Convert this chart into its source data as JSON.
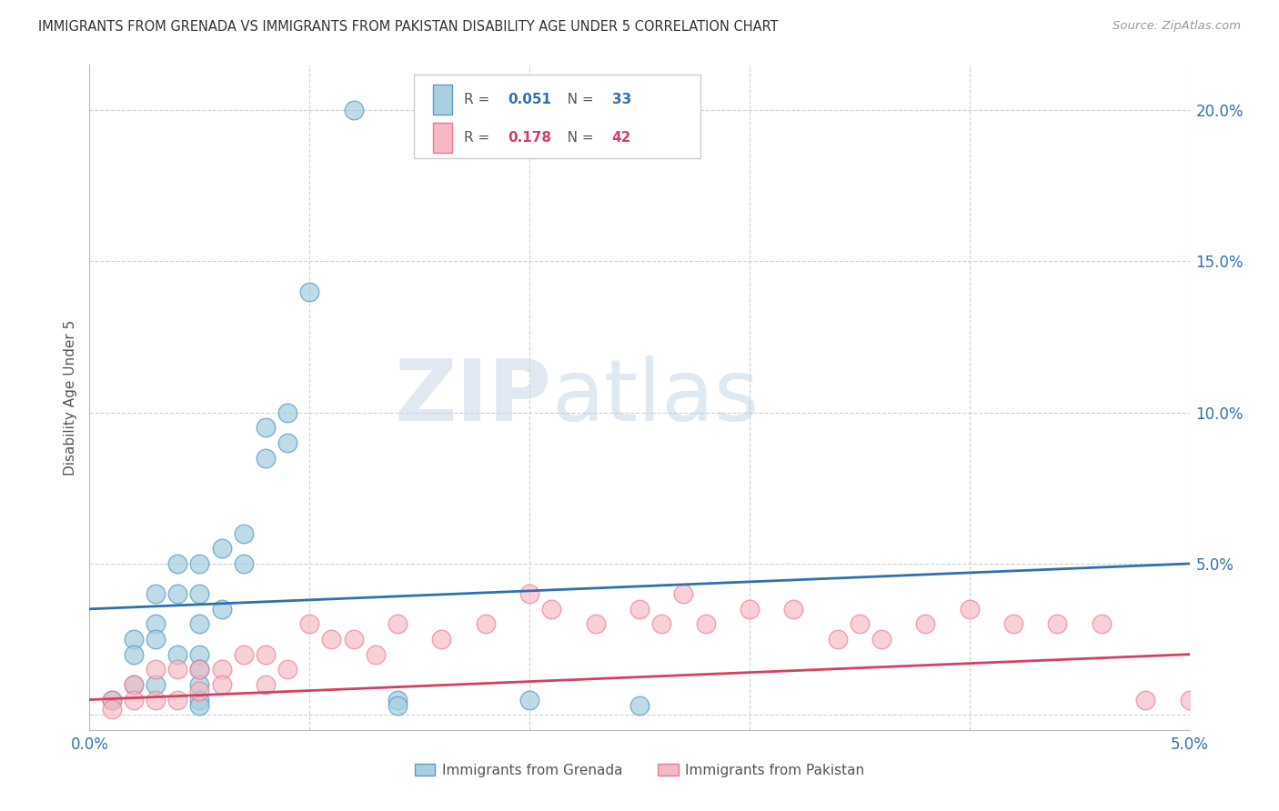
{
  "title": "IMMIGRANTS FROM GRENADA VS IMMIGRANTS FROM PAKISTAN DISABILITY AGE UNDER 5 CORRELATION CHART",
  "source": "Source: ZipAtlas.com",
  "ylabel": "Disability Age Under 5",
  "xlim": [
    0.0,
    0.05
  ],
  "ylim": [
    -0.005,
    0.215
  ],
  "yticks": [
    0.0,
    0.05,
    0.1,
    0.15,
    0.2
  ],
  "ytick_labels": [
    "",
    "5.0%",
    "10.0%",
    "15.0%",
    "20.0%"
  ],
  "xticks": [
    0.0,
    0.01,
    0.02,
    0.03,
    0.04,
    0.05
  ],
  "xtick_labels": [
    "0.0%",
    "",
    "",
    "",
    "",
    "5.0%"
  ],
  "legend_label1": "Immigrants from Grenada",
  "legend_label2": "Immigrants from Pakistan",
  "R1": "0.051",
  "N1": "33",
  "R2": "0.178",
  "N2": "42",
  "color1": "#a8cfe0",
  "color2": "#f5b8c4",
  "edge_color1": "#5b9dc9",
  "edge_color2": "#e87a90",
  "line_color1": "#3070b0",
  "line_color2": "#d64060",
  "watermark_zip": "ZIP",
  "watermark_atlas": "atlas",
  "grenada_x": [
    0.001,
    0.002,
    0.002,
    0.002,
    0.003,
    0.003,
    0.003,
    0.003,
    0.004,
    0.004,
    0.004,
    0.005,
    0.005,
    0.005,
    0.005,
    0.005,
    0.005,
    0.005,
    0.005,
    0.006,
    0.006,
    0.007,
    0.007,
    0.008,
    0.008,
    0.009,
    0.009,
    0.01,
    0.012,
    0.014,
    0.014,
    0.02,
    0.025
  ],
  "grenada_y": [
    0.005,
    0.025,
    0.02,
    0.01,
    0.04,
    0.03,
    0.025,
    0.01,
    0.05,
    0.04,
    0.02,
    0.05,
    0.04,
    0.03,
    0.02,
    0.015,
    0.01,
    0.005,
    0.003,
    0.055,
    0.035,
    0.06,
    0.05,
    0.095,
    0.085,
    0.1,
    0.09,
    0.14,
    0.2,
    0.005,
    0.003,
    0.005,
    0.003
  ],
  "pakistan_x": [
    0.001,
    0.001,
    0.002,
    0.002,
    0.003,
    0.003,
    0.004,
    0.004,
    0.005,
    0.005,
    0.006,
    0.006,
    0.007,
    0.008,
    0.008,
    0.009,
    0.01,
    0.011,
    0.012,
    0.013,
    0.014,
    0.016,
    0.018,
    0.02,
    0.021,
    0.023,
    0.025,
    0.026,
    0.027,
    0.028,
    0.03,
    0.032,
    0.034,
    0.035,
    0.036,
    0.038,
    0.04,
    0.042,
    0.044,
    0.046,
    0.048,
    0.05
  ],
  "pakistan_y": [
    0.005,
    0.002,
    0.01,
    0.005,
    0.015,
    0.005,
    0.015,
    0.005,
    0.015,
    0.008,
    0.015,
    0.01,
    0.02,
    0.02,
    0.01,
    0.015,
    0.03,
    0.025,
    0.025,
    0.02,
    0.03,
    0.025,
    0.03,
    0.04,
    0.035,
    0.03,
    0.035,
    0.03,
    0.04,
    0.03,
    0.035,
    0.035,
    0.025,
    0.03,
    0.025,
    0.03,
    0.035,
    0.03,
    0.03,
    0.03,
    0.005,
    0.005
  ],
  "trend1_x0": 0.0,
  "trend1_x1": 0.05,
  "trend1_y0": 0.035,
  "trend1_y1": 0.05,
  "trend2_x0": 0.0,
  "trend2_x1": 0.05,
  "trend2_y0": 0.005,
  "trend2_y1": 0.02
}
